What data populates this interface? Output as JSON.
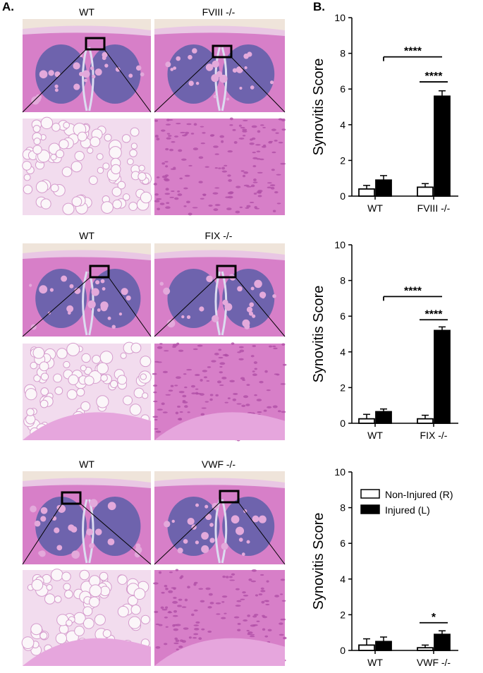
{
  "panel_a": {
    "letter": "A.",
    "rows": [
      {
        "left_title": "WT",
        "right_title": "FVIII -/-"
      },
      {
        "left_title": "WT",
        "right_title": "FIX -/-"
      },
      {
        "left_title": "WT",
        "right_title": "VWF -/-"
      }
    ]
  },
  "panel_b": {
    "letter": "B."
  },
  "colors": {
    "tissue_pink": "#d77fc8",
    "tissue_dark": "#b04fa6",
    "cartilage_blue": "#5c5ea8",
    "bg_cream": "#efe4da",
    "bar_non_injured": "#ffffff",
    "bar_injured": "#000000"
  },
  "chart_data": [
    {
      "type": "bar",
      "ylabel": "Synovitis Score",
      "ylim": [
        0,
        10
      ],
      "yticks": [
        "0",
        "2",
        "4",
        "6",
        "8",
        "10"
      ],
      "categories": [
        "WT",
        "FVIII -/-"
      ],
      "series": [
        {
          "name": "Non-Injured (R)",
          "values": [
            0.4,
            0.5
          ],
          "errors": [
            0.2,
            0.2
          ]
        },
        {
          "name": "Injured (L)",
          "values": [
            0.9,
            5.6
          ],
          "errors": [
            0.25,
            0.3
          ]
        }
      ],
      "annotations": [
        {
          "label": "****",
          "from": [
            0,
            1
          ],
          "to": [
            1,
            1
          ],
          "level": 7.8
        },
        {
          "label": "****",
          "from": [
            1,
            0
          ],
          "to": [
            1,
            1
          ],
          "level": 6.4
        }
      ],
      "legend": false
    },
    {
      "type": "bar",
      "ylabel": "Synovitis Score",
      "ylim": [
        0,
        10
      ],
      "yticks": [
        "0",
        "2",
        "4",
        "6",
        "8",
        "10"
      ],
      "categories": [
        "WT",
        "FIX -/-"
      ],
      "series": [
        {
          "name": "Non-Injured (R)",
          "values": [
            0.25,
            0.25
          ],
          "errors": [
            0.25,
            0.2
          ]
        },
        {
          "name": "Injured (L)",
          "values": [
            0.65,
            5.2
          ],
          "errors": [
            0.15,
            0.2
          ]
        }
      ],
      "annotations": [
        {
          "label": "****",
          "from": [
            0,
            1
          ],
          "to": [
            1,
            1
          ],
          "level": 7.1
        },
        {
          "label": "****",
          "from": [
            1,
            0
          ],
          "to": [
            1,
            1
          ],
          "level": 5.8
        }
      ],
      "legend": false
    },
    {
      "type": "bar",
      "ylabel": "Synovitis Score",
      "ylim": [
        0,
        10
      ],
      "yticks": [
        "0",
        "2",
        "4",
        "6",
        "8",
        "10"
      ],
      "categories": [
        "WT",
        "VWF -/-"
      ],
      "series": [
        {
          "name": "Non-Injured (R)",
          "values": [
            0.3,
            0.15
          ],
          "errors": [
            0.35,
            0.15
          ]
        },
        {
          "name": "Injured (L)",
          "values": [
            0.5,
            0.9
          ],
          "errors": [
            0.25,
            0.2
          ]
        }
      ],
      "annotations": [
        {
          "label": "*",
          "from": [
            1,
            0
          ],
          "to": [
            1,
            1
          ],
          "level": 1.55
        }
      ],
      "legend": true,
      "legend_position": "top-right"
    }
  ]
}
